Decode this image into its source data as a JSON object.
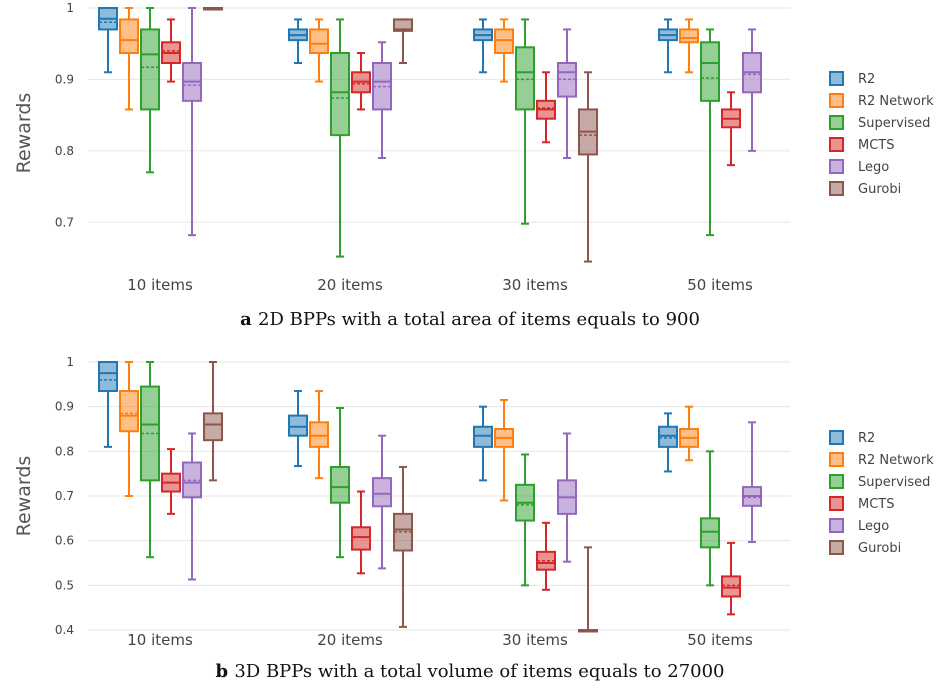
{
  "legend_entries": [
    "R2",
    "R2 Network",
    "Supervised",
    "MCTS",
    "Lego",
    "Gurobi"
  ],
  "colors": [
    "#1f77b4",
    "#ff7f0e",
    "#2ca02c",
    "#d62728",
    "#9467bd",
    "#8c564b"
  ],
  "chart_data": [
    {
      "type": "box",
      "panel_letter": "a",
      "caption": "2D BPPs with a total area of items equals to 900",
      "ylabel": "Rewards",
      "categories": [
        "10 items",
        "20 items",
        "30 items",
        "50 items"
      ],
      "ylim": [
        0.65,
        1.0
      ],
      "yticks": [
        0.7,
        0.8,
        0.9,
        1
      ],
      "ytick_labels": [
        "0.7",
        "0.8",
        "0.9",
        "1"
      ],
      "grid": true,
      "legend_position": "right",
      "series": [
        {
          "name": "R2",
          "boxes": [
            {
              "min": 0.91,
              "q1": 0.97,
              "median": 0.985,
              "q3": 1.0,
              "max": 1.0,
              "mean": 0.98
            },
            {
              "min": 0.923,
              "q1": 0.955,
              "median": 0.962,
              "q3": 0.97,
              "max": 0.984,
              "mean": 0.962
            },
            {
              "min": 0.91,
              "q1": 0.955,
              "median": 0.962,
              "q3": 0.97,
              "max": 0.984,
              "mean": 0.962
            },
            {
              "min": 0.91,
              "q1": 0.955,
              "median": 0.962,
              "q3": 0.97,
              "max": 0.984,
              "mean": 0.962
            }
          ]
        },
        {
          "name": "R2 Network",
          "boxes": [
            {
              "min": 0.858,
              "q1": 0.937,
              "median": 0.955,
              "q3": 0.984,
              "max": 1.0,
              "mean": 0.955
            },
            {
              "min": 0.897,
              "q1": 0.937,
              "median": 0.95,
              "q3": 0.97,
              "max": 0.984,
              "mean": 0.95
            },
            {
              "min": 0.897,
              "q1": 0.937,
              "median": 0.955,
              "q3": 0.97,
              "max": 0.984,
              "mean": 0.955
            },
            {
              "min": 0.91,
              "q1": 0.952,
              "median": 0.958,
              "q3": 0.97,
              "max": 0.984,
              "mean": 0.958
            }
          ]
        },
        {
          "name": "Supervised",
          "boxes": [
            {
              "min": 0.77,
              "q1": 0.858,
              "median": 0.935,
              "q3": 0.97,
              "max": 1.0,
              "mean": 0.917
            },
            {
              "min": 0.652,
              "q1": 0.822,
              "median": 0.882,
              "q3": 0.937,
              "max": 0.984,
              "mean": 0.874
            },
            {
              "min": 0.698,
              "q1": 0.858,
              "median": 0.91,
              "q3": 0.945,
              "max": 0.984,
              "mean": 0.9
            },
            {
              "min": 0.682,
              "q1": 0.87,
              "median": 0.923,
              "q3": 0.952,
              "max": 0.97,
              "mean": 0.902
            }
          ]
        },
        {
          "name": "MCTS",
          "boxes": [
            {
              "min": 0.897,
              "q1": 0.923,
              "median": 0.937,
              "q3": 0.952,
              "max": 0.984,
              "mean": 0.94
            },
            {
              "min": 0.858,
              "q1": 0.882,
              "median": 0.897,
              "q3": 0.91,
              "max": 0.937,
              "mean": 0.894
            },
            {
              "min": 0.812,
              "q1": 0.845,
              "median": 0.858,
              "q3": 0.87,
              "max": 0.91,
              "mean": 0.86
            },
            {
              "min": 0.78,
              "q1": 0.833,
              "median": 0.845,
              "q3": 0.858,
              "max": 0.882,
              "mean": 0.845
            }
          ]
        },
        {
          "name": "Lego",
          "boxes": [
            {
              "min": 0.682,
              "q1": 0.87,
              "median": 0.897,
              "q3": 0.923,
              "max": 1.0,
              "mean": 0.892
            },
            {
              "min": 0.79,
              "q1": 0.858,
              "median": 0.897,
              "q3": 0.923,
              "max": 0.952,
              "mean": 0.89
            },
            {
              "min": 0.79,
              "q1": 0.876,
              "median": 0.91,
              "q3": 0.923,
              "max": 0.97,
              "mean": 0.9
            },
            {
              "min": 0.8,
              "q1": 0.882,
              "median": 0.91,
              "q3": 0.937,
              "max": 0.97,
              "mean": 0.907
            }
          ]
        },
        {
          "name": "Gurobi",
          "boxes": [
            {
              "min": 1.0,
              "q1": 1.0,
              "median": 1.0,
              "q3": 1.0,
              "max": 1.0,
              "mean": 1.0
            },
            {
              "min": 0.923,
              "q1": 0.968,
              "median": 0.97,
              "q3": 0.984,
              "max": 0.984,
              "mean": 0.97
            },
            {
              "min": 0.645,
              "q1": 0.795,
              "median": 0.827,
              "q3": 0.858,
              "max": 0.91,
              "mean": 0.822
            },
            null
          ]
        }
      ]
    },
    {
      "type": "box",
      "panel_letter": "b",
      "caption": "3D BPPs with a total volume of items equals to 27000",
      "ylabel": "Rewards",
      "categories": [
        "10 items",
        "20 items",
        "30 items",
        "50 items"
      ],
      "ylim": [
        0.4,
        1.0
      ],
      "yticks": [
        0.4,
        0.5,
        0.6,
        0.7,
        0.8,
        0.9,
        1
      ],
      "ytick_labels": [
        "0.4",
        "0.5",
        "0.6",
        "0.7",
        "0.8",
        "0.9",
        "1"
      ],
      "grid": true,
      "legend_position": "right",
      "series": [
        {
          "name": "R2",
          "boxes": [
            {
              "min": 0.81,
              "q1": 0.935,
              "median": 0.975,
              "q3": 1.0,
              "max": 1.0,
              "mean": 0.96
            },
            {
              "min": 0.767,
              "q1": 0.835,
              "median": 0.855,
              "q3": 0.88,
              "max": 0.935,
              "mean": 0.855
            },
            {
              "min": 0.735,
              "q1": 0.81,
              "median": 0.835,
              "q3": 0.855,
              "max": 0.9,
              "mean": 0.835
            },
            {
              "min": 0.755,
              "q1": 0.81,
              "median": 0.835,
              "q3": 0.855,
              "max": 0.885,
              "mean": 0.83
            }
          ]
        },
        {
          "name": "R2 Network",
          "boxes": [
            {
              "min": 0.7,
              "q1": 0.845,
              "median": 0.88,
              "q3": 0.935,
              "max": 1.0,
              "mean": 0.885
            },
            {
              "min": 0.74,
              "q1": 0.81,
              "median": 0.835,
              "q3": 0.865,
              "max": 0.935,
              "mean": 0.835
            },
            {
              "min": 0.69,
              "q1": 0.81,
              "median": 0.83,
              "q3": 0.85,
              "max": 0.915,
              "mean": 0.83
            },
            {
              "min": 0.78,
              "q1": 0.81,
              "median": 0.83,
              "q3": 0.85,
              "max": 0.9,
              "mean": 0.83
            }
          ]
        },
        {
          "name": "Supervised",
          "boxes": [
            {
              "min": 0.563,
              "q1": 0.735,
              "median": 0.86,
              "q3": 0.945,
              "max": 1.0,
              "mean": 0.84
            },
            {
              "min": 0.563,
              "q1": 0.685,
              "median": 0.72,
              "q3": 0.765,
              "max": 0.897,
              "mean": 0.72
            },
            {
              "min": 0.5,
              "q1": 0.645,
              "median": 0.685,
              "q3": 0.725,
              "max": 0.793,
              "mean": 0.68
            },
            {
              "min": 0.5,
              "q1": 0.585,
              "median": 0.62,
              "q3": 0.65,
              "max": 0.8,
              "mean": 0.62
            }
          ]
        },
        {
          "name": "MCTS",
          "boxes": [
            {
              "min": 0.66,
              "q1": 0.71,
              "median": 0.73,
              "q3": 0.75,
              "max": 0.805,
              "mean": 0.73
            },
            {
              "min": 0.527,
              "q1": 0.58,
              "median": 0.608,
              "q3": 0.63,
              "max": 0.71,
              "mean": 0.608
            },
            {
              "min": 0.49,
              "q1": 0.535,
              "median": 0.55,
              "q3": 0.575,
              "max": 0.64,
              "mean": 0.555
            },
            {
              "min": 0.435,
              "q1": 0.475,
              "median": 0.495,
              "q3": 0.52,
              "max": 0.595,
              "mean": 0.5
            }
          ]
        },
        {
          "name": "Lego",
          "boxes": [
            {
              "min": 0.513,
              "q1": 0.697,
              "median": 0.73,
              "q3": 0.775,
              "max": 0.84,
              "mean": 0.735
            },
            {
              "min": 0.538,
              "q1": 0.677,
              "median": 0.705,
              "q3": 0.74,
              "max": 0.835,
              "mean": 0.705
            },
            {
              "min": 0.553,
              "q1": 0.66,
              "median": 0.697,
              "q3": 0.735,
              "max": 0.84,
              "mean": 0.697
            },
            {
              "min": 0.597,
              "q1": 0.678,
              "median": 0.7,
              "q3": 0.72,
              "max": 0.865,
              "mean": 0.697
            }
          ]
        },
        {
          "name": "Gurobi",
          "boxes": [
            {
              "min": 0.735,
              "q1": 0.825,
              "median": 0.86,
              "q3": 0.885,
              "max": 1.0,
              "mean": 0.86
            },
            {
              "min": 0.407,
              "q1": 0.578,
              "median": 0.625,
              "q3": 0.66,
              "max": 0.765,
              "mean": 0.62
            },
            {
              "min": 0.4,
              "q1": 0.4,
              "median": 0.4,
              "q3": 0.4,
              "max": 0.585,
              "mean": 0.4
            },
            null
          ]
        }
      ]
    }
  ]
}
